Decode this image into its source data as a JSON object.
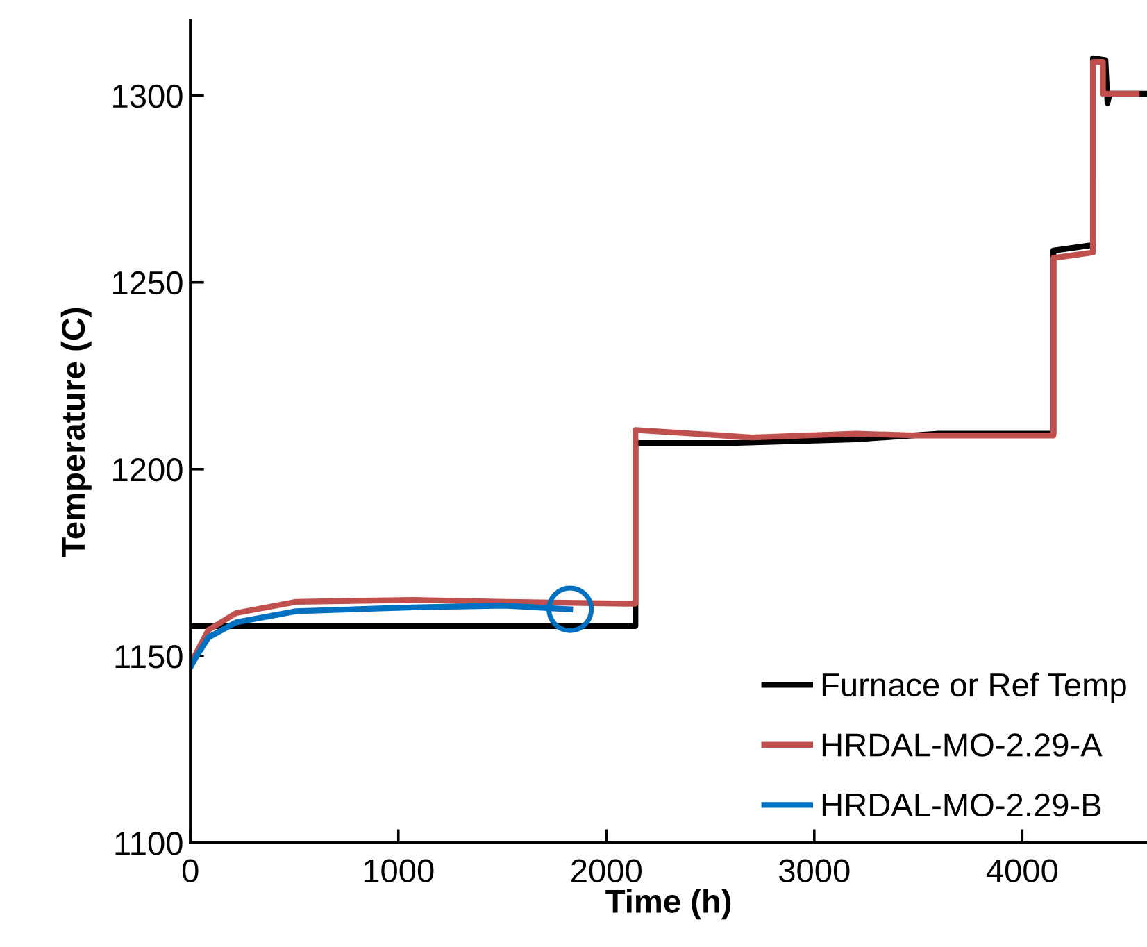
{
  "chart_data": {
    "type": "line",
    "xlabel": "Time (h)",
    "ylabel": "Temperature (C)",
    "xlim": [
      0,
      4600
    ],
    "xticks": [
      0,
      1000,
      2000,
      3000,
      4000
    ],
    "ylim": [
      1100,
      1320
    ],
    "yticks": [
      1100,
      1150,
      1200,
      1250,
      1300
    ],
    "grid": false,
    "legend": "bottom right",
    "marker": "none",
    "line_style": "solid",
    "series": [
      {
        "name": "Furnace or Ref Temp",
        "color": "#000000",
        "x": [
          0,
          2140,
          2140,
          2170,
          2600,
          3200,
          3600,
          4150,
          4150,
          4340,
          4340,
          4400,
          4410,
          4420,
          4590
        ],
        "values": [
          1158,
          1158,
          1207,
          1207,
          1207,
          1208,
          1209.5,
          1209.5,
          1258.5,
          1260,
          1310,
          1309.5,
          1298,
          1300.5,
          1300.5
        ]
      },
      {
        "name": "HRDAL-MO-2.29-A",
        "color": "#c0504d",
        "x": [
          0,
          30,
          87,
          220,
          508,
          1070,
          1512,
          2094,
          2140,
          2140,
          2700,
          3200,
          3500,
          4150,
          4150,
          4340,
          4340,
          4388,
          4388,
          4550
        ],
        "values": [
          1148,
          1151,
          1157,
          1161.5,
          1164.5,
          1165,
          1164.5,
          1164,
          1164,
          1210.5,
          1208.5,
          1209.5,
          1209,
          1209,
          1256.5,
          1258,
          1309,
          1309,
          1300.5,
          1300.5
        ]
      },
      {
        "name": "HRDAL-MO-2.29-B",
        "color": "#0070c0",
        "x": [
          0,
          30,
          87,
          220,
          508,
          1070,
          1512,
          1826
        ],
        "values": [
          1147,
          1150,
          1155,
          1159,
          1162,
          1163,
          1163.5,
          1162.5
        ]
      }
    ]
  }
}
